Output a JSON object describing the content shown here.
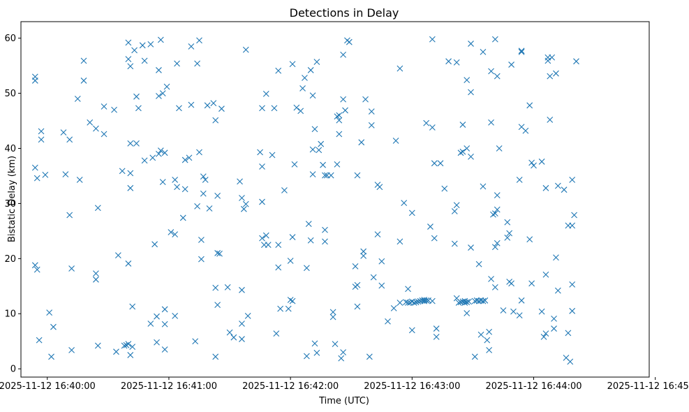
{
  "chart_data": {
    "type": "scatter",
    "title": "Detections in Delay",
    "xlabel": "Time (UTC)",
    "ylabel": "Bistatic Delay (km)",
    "marker": "x",
    "color": "#1f77b4",
    "x_unit": "seconds after 2025-11-12 16:40:00",
    "xlim": [
      -13,
      297
    ],
    "ylim": [
      -1.5,
      63
    ],
    "xticks": [
      0,
      60,
      120,
      180,
      240,
      300
    ],
    "xtick_labels": [
      "2025-11-12 16:40:00",
      "2025-11-12 16:41:00",
      "2025-11-12 16:42:00",
      "2025-11-12 16:43:00",
      "2025-11-12 16:44:00",
      "2025-11-12 16:45:00"
    ],
    "yticks": [
      0,
      10,
      20,
      30,
      40,
      50,
      60
    ],
    "ytick_labels": [
      "0",
      "10",
      "20",
      "30",
      "40",
      "50",
      "60"
    ],
    "points": [
      [
        -6,
        53
      ],
      [
        -6,
        52.3
      ],
      [
        -6,
        36.5
      ],
      [
        -5,
        34.6
      ],
      [
        -6,
        18.8
      ],
      [
        -5,
        18
      ],
      [
        -4,
        5.2
      ],
      [
        -3,
        43.1
      ],
      [
        -3,
        41.6
      ],
      [
        -1,
        35.2
      ],
      [
        1,
        10.2
      ],
      [
        2,
        2.2
      ],
      [
        3,
        7.6
      ],
      [
        8,
        42.9
      ],
      [
        9,
        35.3
      ],
      [
        11,
        41.6
      ],
      [
        11,
        27.9
      ],
      [
        12,
        18.2
      ],
      [
        12,
        3.4
      ],
      [
        15,
        49
      ],
      [
        16,
        34.3
      ],
      [
        18,
        55.9
      ],
      [
        18,
        52.3
      ],
      [
        21,
        44.7
      ],
      [
        24,
        43.6
      ],
      [
        24,
        17.3
      ],
      [
        24,
        16.2
      ],
      [
        25,
        29.2
      ],
      [
        25,
        4.2
      ],
      [
        28,
        47.6
      ],
      [
        28,
        42.6
      ],
      [
        33,
        47
      ],
      [
        34,
        3.1
      ],
      [
        35,
        20.6
      ],
      [
        37,
        35.9
      ],
      [
        38,
        4.2
      ],
      [
        39,
        4.3
      ],
      [
        40,
        59.2
      ],
      [
        40,
        56.2
      ],
      [
        40,
        19.1
      ],
      [
        40,
        4.5
      ],
      [
        41,
        54.9
      ],
      [
        41,
        40.9
      ],
      [
        41,
        35.5
      ],
      [
        41,
        32.8
      ],
      [
        41,
        2.5
      ],
      [
        42,
        11.3
      ],
      [
        42,
        4
      ],
      [
        43,
        57.8
      ],
      [
        44,
        40.9
      ],
      [
        44,
        49.4
      ],
      [
        45,
        47.3
      ],
      [
        47,
        58.7
      ],
      [
        48,
        55.9
      ],
      [
        48,
        37.8
      ],
      [
        51,
        58.9
      ],
      [
        51,
        8.2
      ],
      [
        52,
        38.3
      ],
      [
        53,
        22.6
      ],
      [
        54,
        4.8
      ],
      [
        54,
        9.5
      ],
      [
        55,
        49.5
      ],
      [
        55,
        39
      ],
      [
        55,
        54.2
      ],
      [
        56,
        59.7
      ],
      [
        56,
        39.6
      ],
      [
        57,
        50
      ],
      [
        57,
        33.9
      ],
      [
        58,
        39.2
      ],
      [
        58,
        8.1
      ],
      [
        58,
        10.8
      ],
      [
        58,
        3.5
      ],
      [
        59,
        51.2
      ],
      [
        61,
        24.8
      ],
      [
        63,
        34.3
      ],
      [
        63,
        24.4
      ],
      [
        63,
        9.6
      ],
      [
        64,
        55.4
      ],
      [
        64,
        33
      ],
      [
        65,
        47.3
      ],
      [
        67,
        27.4
      ],
      [
        68,
        37.9
      ],
      [
        68,
        32.6
      ],
      [
        70,
        38.3
      ],
      [
        71,
        58.5
      ],
      [
        71,
        47.9
      ],
      [
        73,
        5
      ],
      [
        74,
        29.5
      ],
      [
        74,
        55.4
      ],
      [
        75,
        59.6
      ],
      [
        75,
        39.3
      ],
      [
        76,
        23.4
      ],
      [
        76,
        19.9
      ],
      [
        77,
        34.9
      ],
      [
        77,
        31.8
      ],
      [
        78,
        34.3
      ],
      [
        79,
        47.8
      ],
      [
        80,
        29.1
      ],
      [
        82,
        48.2
      ],
      [
        83,
        45.1
      ],
      [
        83,
        14.7
      ],
      [
        83,
        2.2
      ],
      [
        84,
        31.4
      ],
      [
        84,
        21
      ],
      [
        84,
        11.6
      ],
      [
        85,
        20.9
      ],
      [
        86,
        47.2
      ],
      [
        89,
        14.8
      ],
      [
        90,
        6.6
      ],
      [
        92,
        5.7
      ],
      [
        95,
        34
      ],
      [
        96,
        31
      ],
      [
        96,
        8.2
      ],
      [
        96,
        5.4
      ],
      [
        96,
        14.3
      ],
      [
        97,
        29
      ],
      [
        98,
        57.9
      ],
      [
        98,
        29.9
      ],
      [
        99,
        9.6
      ],
      [
        105,
        39.3
      ],
      [
        106,
        47.3
      ],
      [
        106,
        36.7
      ],
      [
        106,
        30.3
      ],
      [
        106,
        23.7
      ],
      [
        107,
        22.5
      ],
      [
        108,
        49.9
      ],
      [
        108,
        24.2
      ],
      [
        109,
        22.5
      ],
      [
        111,
        38.8
      ],
      [
        112,
        47.3
      ],
      [
        113,
        6.4
      ],
      [
        114,
        54.1
      ],
      [
        114,
        22.5
      ],
      [
        114,
        18.4
      ],
      [
        115,
        10.9
      ],
      [
        117,
        32.4
      ],
      [
        119,
        10.9
      ],
      [
        120,
        19.6
      ],
      [
        120,
        12.5
      ],
      [
        121,
        12.3
      ],
      [
        121,
        23.9
      ],
      [
        121,
        55.3
      ],
      [
        122,
        37.1
      ],
      [
        123,
        47.4
      ],
      [
        125,
        46.8
      ],
      [
        126,
        50.9
      ],
      [
        127,
        52.8
      ],
      [
        128,
        2.3
      ],
      [
        128,
        18.3
      ],
      [
        129,
        26.3
      ],
      [
        130,
        54.2
      ],
      [
        130,
        23.3
      ],
      [
        131,
        39.8
      ],
      [
        131,
        35.3
      ],
      [
        131,
        49.6
      ],
      [
        132,
        43.5
      ],
      [
        132,
        4.6
      ],
      [
        133,
        55.7
      ],
      [
        133,
        2.9
      ],
      [
        134,
        39.7
      ],
      [
        135,
        40.8
      ],
      [
        136,
        37
      ],
      [
        137,
        35.1
      ],
      [
        137,
        25.2
      ],
      [
        137,
        23.1
      ],
      [
        138,
        35.1
      ],
      [
        140,
        35.1
      ],
      [
        141,
        10.3
      ],
      [
        141,
        9.4
      ],
      [
        142,
        4.5
      ],
      [
        143,
        45.8
      ],
      [
        143,
        37.1
      ],
      [
        144,
        45.1
      ],
      [
        144,
        42.6
      ],
      [
        144,
        46
      ],
      [
        145,
        1.9
      ],
      [
        146,
        48.9
      ],
      [
        146,
        57
      ],
      [
        146,
        3
      ],
      [
        147,
        46.9
      ],
      [
        148,
        59.6
      ],
      [
        149,
        59.3
      ],
      [
        152,
        18.6
      ],
      [
        152,
        14.9
      ],
      [
        153,
        15.2
      ],
      [
        153,
        11.3
      ],
      [
        153,
        35.1
      ],
      [
        155,
        41.1
      ],
      [
        156,
        21.3
      ],
      [
        156,
        20.5
      ],
      [
        157,
        48.9
      ],
      [
        159,
        2.2
      ],
      [
        160,
        44.2
      ],
      [
        160,
        46.7
      ],
      [
        161,
        16.6
      ],
      [
        163,
        33.4
      ],
      [
        163,
        24.4
      ],
      [
        164,
        33
      ],
      [
        165,
        19.5
      ],
      [
        165,
        15.1
      ],
      [
        168,
        8.6
      ],
      [
        171,
        11
      ],
      [
        172,
        41.4
      ],
      [
        174,
        54.5
      ],
      [
        174,
        23.1
      ],
      [
        174,
        12
      ],
      [
        176,
        30.1
      ],
      [
        177,
        12.1
      ],
      [
        178,
        12
      ],
      [
        178,
        14.5
      ],
      [
        179,
        12
      ],
      [
        180,
        12.2
      ],
      [
        180,
        28.3
      ],
      [
        180,
        7
      ],
      [
        181,
        12
      ],
      [
        182,
        12.1
      ],
      [
        183,
        12.2
      ],
      [
        184,
        12.3
      ],
      [
        185,
        12.4
      ],
      [
        186,
        12.5
      ],
      [
        186,
        12.3
      ],
      [
        187,
        12.4
      ],
      [
        187,
        44.6
      ],
      [
        188,
        12.4
      ],
      [
        189,
        25.8
      ],
      [
        190,
        43.8
      ],
      [
        190,
        59.8
      ],
      [
        190,
        12.3
      ],
      [
        191,
        23.7
      ],
      [
        191,
        37.3
      ],
      [
        192,
        5.8
      ],
      [
        192,
        7.3
      ],
      [
        194,
        37.3
      ],
      [
        196,
        32.7
      ],
      [
        198,
        55.8
      ],
      [
        201,
        22.7
      ],
      [
        201,
        28.6
      ],
      [
        202,
        29.7
      ],
      [
        202,
        55.6
      ],
      [
        202,
        12.8
      ],
      [
        203,
        12
      ],
      [
        204,
        12.1
      ],
      [
        204,
        39.2
      ],
      [
        205,
        39.4
      ],
      [
        205,
        44.3
      ],
      [
        205,
        12.2
      ],
      [
        206,
        12
      ],
      [
        206,
        12.3
      ],
      [
        207,
        12.1
      ],
      [
        207,
        10.1
      ],
      [
        207,
        40
      ],
      [
        207,
        52.4
      ],
      [
        208,
        12.2
      ],
      [
        209,
        50.2
      ],
      [
        209,
        22
      ],
      [
        209,
        38.5
      ],
      [
        209,
        59
      ],
      [
        211,
        12.3
      ],
      [
        211,
        2.2
      ],
      [
        212,
        12.4
      ],
      [
        213,
        19
      ],
      [
        213,
        12.3
      ],
      [
        214,
        6.2
      ],
      [
        214,
        12.4
      ],
      [
        215,
        12.3
      ],
      [
        215,
        57.5
      ],
      [
        215,
        33.1
      ],
      [
        216,
        12.4
      ],
      [
        217,
        5.2
      ],
      [
        218,
        6.7
      ],
      [
        218,
        3.4
      ],
      [
        219,
        44.7
      ],
      [
        219,
        54
      ],
      [
        219,
        16.3
      ],
      [
        220,
        28
      ],
      [
        221,
        28.2
      ],
      [
        221,
        22.1
      ],
      [
        221,
        14.8
      ],
      [
        221,
        59.8
      ],
      [
        222,
        31.5
      ],
      [
        222,
        28.9
      ],
      [
        222,
        53.1
      ],
      [
        222,
        22.8
      ],
      [
        223,
        40
      ],
      [
        225,
        10.6
      ],
      [
        227,
        26.6
      ],
      [
        227,
        23.8
      ],
      [
        228,
        24.6
      ],
      [
        228,
        15.8
      ],
      [
        229,
        15.5
      ],
      [
        229,
        55.2
      ],
      [
        230,
        10.4
      ],
      [
        233,
        34.3
      ],
      [
        233,
        9.7
      ],
      [
        234,
        43.9
      ],
      [
        234,
        12.4
      ],
      [
        234,
        57.5
      ],
      [
        234,
        57.7
      ],
      [
        236,
        43.2
      ],
      [
        238,
        23.5
      ],
      [
        238,
        47.8
      ],
      [
        239,
        37.4
      ],
      [
        239,
        15.5
      ],
      [
        240,
        36.9
      ],
      [
        244,
        37.6
      ],
      [
        244,
        10.4
      ],
      [
        245,
        5.8
      ],
      [
        246,
        32.8
      ],
      [
        246,
        6.4
      ],
      [
        246,
        17.1
      ],
      [
        247,
        56.5
      ],
      [
        247,
        55.9
      ],
      [
        248,
        45.2
      ],
      [
        248,
        53.1
      ],
      [
        249,
        56.5
      ],
      [
        250,
        9.1
      ],
      [
        250,
        7.3
      ],
      [
        251,
        20.2
      ],
      [
        251,
        53.6
      ],
      [
        252,
        33.2
      ],
      [
        252,
        14.2
      ],
      [
        255,
        32.5
      ],
      [
        256,
        2
      ],
      [
        257,
        26
      ],
      [
        257,
        6.5
      ],
      [
        258,
        1.3
      ],
      [
        259,
        26
      ],
      [
        259,
        34.3
      ],
      [
        259,
        15.3
      ],
      [
        259,
        10.5
      ],
      [
        260,
        27.9
      ],
      [
        261,
        55.8
      ]
    ]
  }
}
